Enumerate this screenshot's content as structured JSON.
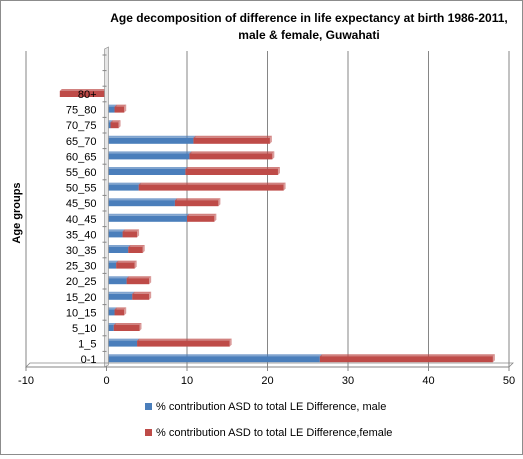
{
  "chart_data": {
    "type": "bar",
    "orientation": "horizontal",
    "stacked": true,
    "title_line1": "Age decomposition of difference in life expectancy at birth 1986-2011,",
    "title_line2": "male & female, Guwahati",
    "ylabel": "Age groups",
    "xlabel": "",
    "xlim": [
      -10,
      50
    ],
    "xticks": [
      -10,
      0,
      10,
      20,
      30,
      40,
      50
    ],
    "grid": true,
    "legend_position": "bottom",
    "categories": [
      "0-1",
      "1_5",
      "5_10",
      "10_15",
      "15_20",
      "20_25",
      "25_30",
      "30_35",
      "35_40",
      "40_45",
      "45_50",
      "50_55",
      "55_60",
      "60_65",
      "65_70",
      "70_75",
      "75_80",
      "80+"
    ],
    "series": [
      {
        "name": "% contribution ASD to total LE Difference, male",
        "color": "#4a7ebb",
        "values": [
          26.5,
          3.8,
          0.9,
          1.0,
          3.2,
          2.5,
          1.2,
          2.7,
          2.0,
          10.0,
          8.5,
          4.0,
          9.8,
          10.3,
          10.8,
          0.5,
          1.0,
          -0.2
        ]
      },
      {
        "name": "% contribution ASD to total LE Difference,female",
        "color": "#be4b48",
        "values": [
          21.5,
          11.5,
          3.2,
          1.2,
          2.1,
          2.8,
          2.3,
          1.8,
          1.8,
          3.4,
          5.4,
          18.0,
          11.5,
          10.3,
          9.5,
          1.0,
          1.2,
          -5.6
        ]
      }
    ]
  }
}
